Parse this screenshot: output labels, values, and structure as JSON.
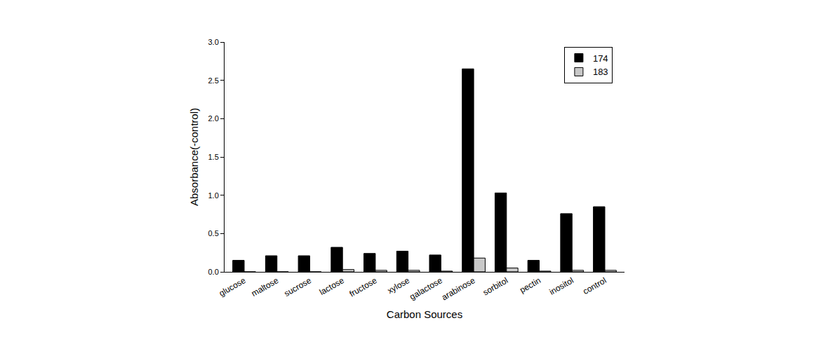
{
  "chart_data": {
    "type": "bar",
    "x_label": "Carbon Sources",
    "y_label": "Absorbance(-control)",
    "categories": [
      "glucose",
      "maltose",
      "sucrose",
      "lactose",
      "fructose",
      "xylose",
      "galactose",
      "arabinose",
      "sorbitol",
      "pectin",
      "inositol",
      "control"
    ],
    "series": [
      {
        "name": "174",
        "color": "#000000",
        "values": [
          0.15,
          0.21,
          0.21,
          0.32,
          0.24,
          0.27,
          0.22,
          2.65,
          1.03,
          0.15,
          0.76,
          0.85
        ]
      },
      {
        "name": "183",
        "color": "#c8c8c8",
        "values": [
          0,
          0,
          0,
          0.03,
          0.02,
          0.02,
          0.01,
          0.18,
          0.05,
          0.01,
          0.02,
          0.02
        ]
      }
    ],
    "ylim": [
      0,
      3
    ],
    "yticks": [
      {
        "value": 0,
        "label": "0.0"
      },
      {
        "value": 0.5,
        "label": "0.5"
      },
      {
        "value": 1,
        "label": "1.0"
      },
      {
        "value": 1.5,
        "label": "1.5"
      },
      {
        "value": 2,
        "label": "2.0"
      },
      {
        "value": 2.5,
        "label": "2.5"
      },
      {
        "value": 3,
        "label": "3.0"
      }
    ],
    "grid": false,
    "legend": "top right"
  }
}
